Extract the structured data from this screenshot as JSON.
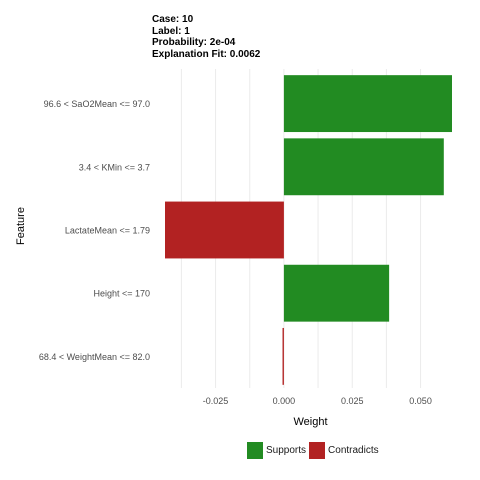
{
  "header": {
    "case": "Case: 10",
    "label": "Label: 1",
    "probability": "Probability: 2e-04",
    "fit": "Explanation Fit: 0.0062"
  },
  "chart_data": {
    "type": "bar",
    "orientation": "horizontal",
    "xlabel": "Weight",
    "ylabel": "Feature",
    "xlim": [
      -0.0435,
      0.0615
    ],
    "xticks": [
      -0.025,
      0.0,
      0.025,
      0.05
    ],
    "xtick_labels": [
      "-0.025",
      "0.000",
      "0.025",
      "0.050"
    ],
    "grid": true,
    "legend_position": "bottom",
    "categories": [
      "96.6 < SaO2Mean <= 97.0",
      "3.4 < KMin <= 3.7",
      "LactateMean <= 1.79",
      "Height <= 170",
      "68.4 < WeightMean <= 82.0"
    ],
    "values": [
      0.0615,
      0.0585,
      -0.0435,
      0.0385,
      -0.0005
    ],
    "bar_groups": [
      "Supports",
      "Supports",
      "Contradicts",
      "Supports",
      "Contradicts"
    ],
    "legend": [
      {
        "name": "Supports",
        "color": "#228b22"
      },
      {
        "name": "Contradicts",
        "color": "#b22222"
      }
    ]
  }
}
